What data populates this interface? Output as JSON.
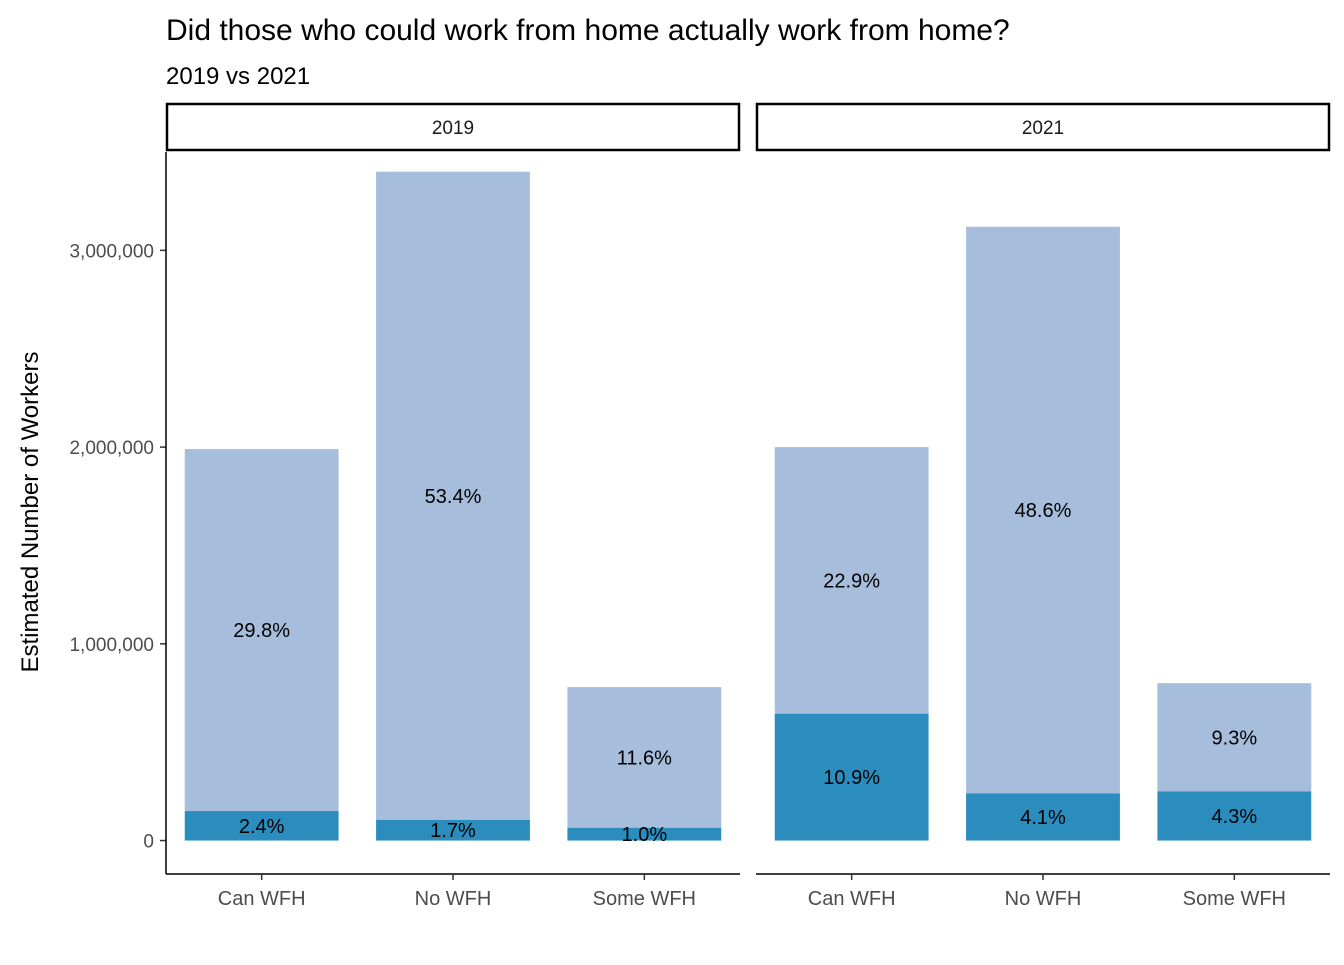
{
  "chart_data": {
    "type": "bar",
    "stacked": true,
    "title": "Did those who could work from home actually work from home?",
    "subtitle": "2019 vs 2021",
    "ylabel": "Estimated Number of Workers",
    "xlabel": "",
    "ylim": [
      -170000,
      3500000
    ],
    "yticks": [
      0,
      1000000,
      2000000,
      3000000
    ],
    "ytick_labels": [
      "0",
      "1,000,000",
      "2,000,000",
      "3,000,000"
    ],
    "categories": [
      "Can WFH",
      "No WFH",
      "Some WFH"
    ],
    "legend": "none",
    "grid": false,
    "colors": {
      "base": "#2b8cbe",
      "top": "#a6bddb"
    },
    "panels": [
      {
        "label": "2019",
        "bars": [
          {
            "category": "Can WFH",
            "bottom": 150000,
            "top": 1840000,
            "bottom_label": "2.4%",
            "top_label": "29.8%"
          },
          {
            "category": "No WFH",
            "bottom": 105000,
            "top": 3295000,
            "bottom_label": "1.7%",
            "top_label": "53.4%"
          },
          {
            "category": "Some WFH",
            "bottom": 65000,
            "top": 715000,
            "bottom_label": "1.0%",
            "top_label": "11.6%"
          }
        ]
      },
      {
        "label": "2021",
        "bars": [
          {
            "category": "Can WFH",
            "bottom": 645000,
            "top": 1355000,
            "bottom_label": "10.9%",
            "top_label": "22.9%"
          },
          {
            "category": "No WFH",
            "bottom": 240000,
            "top": 2880000,
            "bottom_label": "4.1%",
            "top_label": "48.6%"
          },
          {
            "category": "Some WFH",
            "bottom": 250000,
            "top": 550000,
            "bottom_label": "4.3%",
            "top_label": "9.3%"
          }
        ]
      }
    ]
  }
}
